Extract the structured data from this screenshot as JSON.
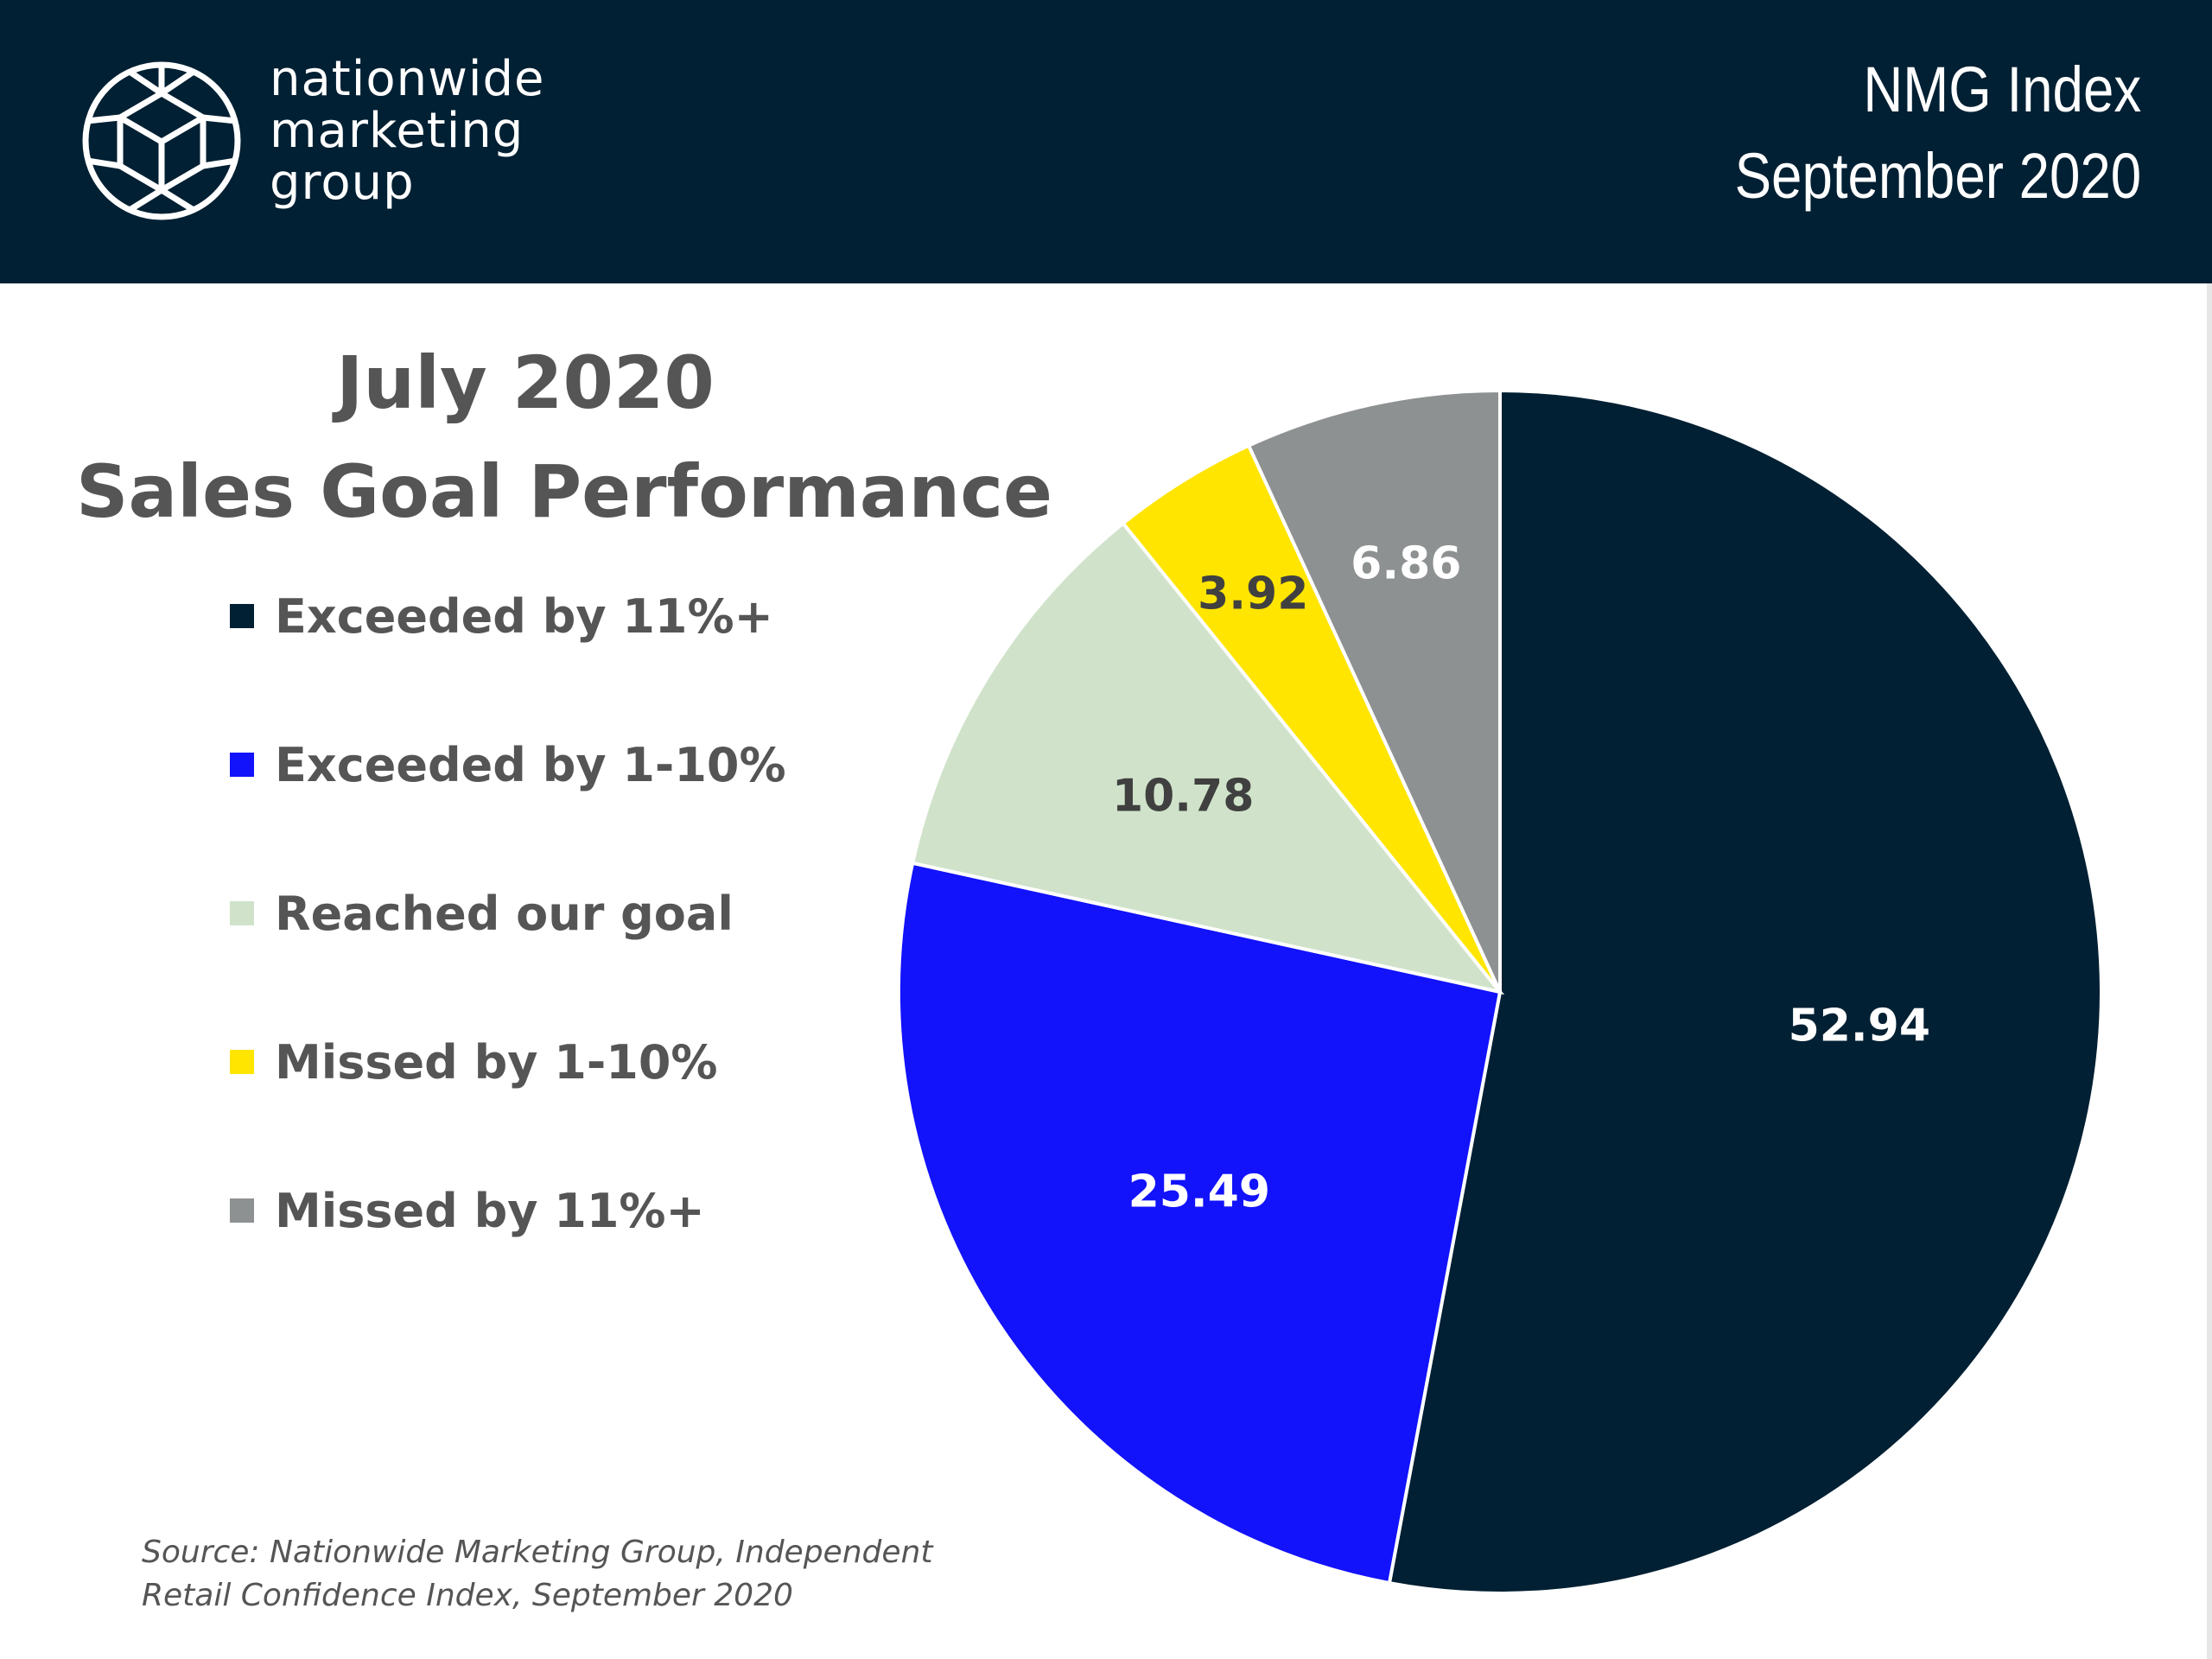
{
  "header": {
    "brand_lines": [
      "nationwide",
      "marketing",
      "group"
    ],
    "index_title": "NMG Index",
    "index_date": "September 2020",
    "background_color": "#022033",
    "logo_icon": "geodesic-cube-icon"
  },
  "chart_data": {
    "type": "pie",
    "title": [
      "July 2020",
      "Sales Goal Performance"
    ],
    "legend_position": "left",
    "slices": [
      {
        "name": "Exceeded by 11%+",
        "value": 52.94,
        "label": "52.94",
        "color": "#022033",
        "label_color": "#ffffff"
      },
      {
        "name": "Exceeded by 1-10%",
        "value": 25.49,
        "label": "25.49",
        "color": "#1212fb",
        "label_color": "#ffffff"
      },
      {
        "name": "Reached our goal",
        "value": 10.78,
        "label": "10.78",
        "color": "#d0e3ca",
        "label_color": "#404040"
      },
      {
        "name": "Missed by 1-10%",
        "value": 3.92,
        "label": "3.92",
        "color": "#ffe500",
        "label_color": "#404040"
      },
      {
        "name": "Missed by 11%+",
        "value": 6.86,
        "label": "6.86",
        "color": "#8e9192",
        "label_color": "#ffffff"
      }
    ],
    "order_on_pie": "clockwise from 12 o'clock"
  },
  "source": {
    "lines": [
      "Source: Nationwide Marketing Group, Independent",
      "Retail Confidence Index, September 2020"
    ]
  }
}
